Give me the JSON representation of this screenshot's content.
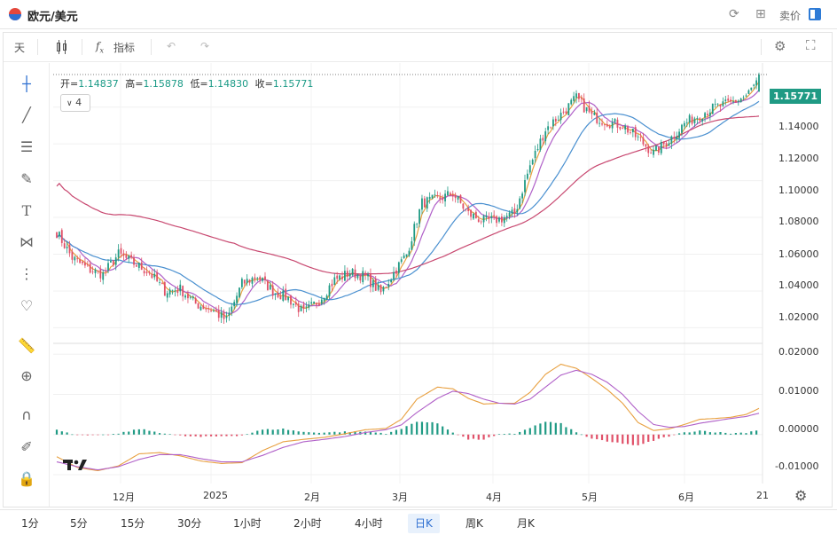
{
  "window": {
    "title": "欧元/美元",
    "sell_label": "卖价"
  },
  "toolbar": {
    "period_label": "天",
    "indicators_label": "指标"
  },
  "ohlc": {
    "open_label": "开=",
    "open": "1.14837",
    "high_label": "高=",
    "high": "1.15878",
    "low_label": "低=",
    "low": "1.14830",
    "close_label": "收=",
    "close": "1.15771"
  },
  "indicator_toggle": "4",
  "last_price": "1.15771",
  "price_axis": [
    "1.14000",
    "1.12000",
    "1.10000",
    "1.08000",
    "1.06000",
    "1.04000",
    "1.02000"
  ],
  "macd_axis": [
    "0.02000",
    "0.01000",
    "0.00000",
    "-0.01000"
  ],
  "time_axis": [
    "12月",
    "2025",
    "2月",
    "3月",
    "4月",
    "5月",
    "6月",
    "21"
  ],
  "timeframes": [
    {
      "label": "1分"
    },
    {
      "label": "5分"
    },
    {
      "label": "15分"
    },
    {
      "label": "30分"
    },
    {
      "label": "1小时"
    },
    {
      "label": "2小时"
    },
    {
      "label": "4小时"
    },
    {
      "label": "日K",
      "active": true
    },
    {
      "label": "周K"
    },
    {
      "label": "月K"
    }
  ],
  "colors": {
    "up": "#1f9a84",
    "down": "#e05068",
    "ma_fast": "#e8a040",
    "ma_mid": "#b060c8",
    "ma_slow": "#4a90d0",
    "ma_long": "#c84870"
  },
  "icons": {
    "window": [
      "refresh-icon",
      "grid-icon",
      "sidebar-toggle-icon"
    ],
    "toolbar": [
      "candlestick-icon",
      "fx-icon",
      "undo-icon",
      "redo-icon",
      "settings-icon",
      "fullscreen-icon"
    ],
    "drawing": [
      "crosshair-icon",
      "trendline-icon",
      "parallel-lines-icon",
      "brush-icon",
      "text-icon",
      "pattern-icon",
      "fib-icon",
      "heart-icon",
      "ruler-icon",
      "zoom-in-icon",
      "magnet-icon",
      "lock-pen-icon",
      "lock-icon"
    ],
    "footer": [
      "gear-icon"
    ]
  },
  "chart_data": {
    "type": "candlestick",
    "price_ylim": [
      1.0115,
      1.164
    ],
    "macd_ylim": [
      -0.0122,
      0.0227
    ],
    "keypoints": [
      [
        0,
        1.072
      ],
      [
        6,
        1.058
      ],
      [
        12,
        1.052
      ],
      [
        18,
        1.049
      ],
      [
        24,
        1.06
      ],
      [
        30,
        1.055
      ],
      [
        36,
        1.05
      ],
      [
        42,
        1.04
      ],
      [
        48,
        1.041
      ],
      [
        54,
        1.033
      ],
      [
        60,
        1.03
      ],
      [
        66,
        1.024
      ],
      [
        72,
        1.044
      ],
      [
        78,
        1.048
      ],
      [
        84,
        1.04
      ],
      [
        90,
        1.036
      ],
      [
        96,
        1.028
      ],
      [
        102,
        1.035
      ],
      [
        108,
        1.046
      ],
      [
        114,
        1.05
      ],
      [
        120,
        1.048
      ],
      [
        126,
        1.039
      ],
      [
        132,
        1.052
      ],
      [
        136,
        1.06
      ],
      [
        142,
        1.088
      ],
      [
        148,
        1.09
      ],
      [
        154,
        1.093
      ],
      [
        160,
        1.082
      ],
      [
        166,
        1.078
      ],
      [
        172,
        1.079
      ],
      [
        178,
        1.082
      ],
      [
        184,
        1.108
      ],
      [
        190,
        1.128
      ],
      [
        196,
        1.136
      ],
      [
        202,
        1.145
      ],
      [
        208,
        1.135
      ],
      [
        214,
        1.132
      ],
      [
        220,
        1.13
      ],
      [
        226,
        1.123
      ],
      [
        232,
        1.115
      ],
      [
        238,
        1.122
      ],
      [
        244,
        1.131
      ],
      [
        250,
        1.136
      ],
      [
        256,
        1.14
      ],
      [
        262,
        1.142
      ],
      [
        268,
        1.146
      ],
      [
        273,
        1.155
      ]
    ],
    "macd_line": [
      [
        0,
        -0.0055
      ],
      [
        8,
        -0.0082
      ],
      [
        16,
        -0.009
      ],
      [
        24,
        -0.0078
      ],
      [
        32,
        -0.0048
      ],
      [
        40,
        -0.0045
      ],
      [
        48,
        -0.0053
      ],
      [
        56,
        -0.0066
      ],
      [
        64,
        -0.0072
      ],
      [
        72,
        -0.007
      ],
      [
        80,
        -0.004
      ],
      [
        88,
        -0.0018
      ],
      [
        96,
        -0.0012
      ],
      [
        104,
        -0.0007
      ],
      [
        112,
        0.0002
      ],
      [
        120,
        0.0012
      ],
      [
        128,
        0.0015
      ],
      [
        134,
        0.0038
      ],
      [
        140,
        0.0088
      ],
      [
        148,
        0.0118
      ],
      [
        154,
        0.0114
      ],
      [
        160,
        0.009
      ],
      [
        166,
        0.0076
      ],
      [
        172,
        0.0078
      ],
      [
        178,
        0.0078
      ],
      [
        184,
        0.0105
      ],
      [
        190,
        0.015
      ],
      [
        196,
        0.0175
      ],
      [
        202,
        0.0165
      ],
      [
        208,
        0.014
      ],
      [
        214,
        0.0112
      ],
      [
        220,
        0.0078
      ],
      [
        226,
        0.003
      ],
      [
        232,
        0.001
      ],
      [
        238,
        0.0014
      ],
      [
        244,
        0.0025
      ],
      [
        250,
        0.0038
      ],
      [
        256,
        0.004
      ],
      [
        262,
        0.0043
      ],
      [
        268,
        0.005
      ],
      [
        273,
        0.0065
      ]
    ],
    "signal_line": [
      [
        0,
        -0.0068
      ],
      [
        8,
        -0.008
      ],
      [
        16,
        -0.0088
      ],
      [
        24,
        -0.008
      ],
      [
        32,
        -0.0062
      ],
      [
        40,
        -0.005
      ],
      [
        48,
        -0.005
      ],
      [
        56,
        -0.006
      ],
      [
        64,
        -0.0068
      ],
      [
        72,
        -0.0068
      ],
      [
        80,
        -0.0052
      ],
      [
        88,
        -0.0032
      ],
      [
        96,
        -0.0018
      ],
      [
        104,
        -0.0012
      ],
      [
        112,
        -0.0005
      ],
      [
        120,
        0.0005
      ],
      [
        128,
        0.0012
      ],
      [
        134,
        0.0024
      ],
      [
        140,
        0.0055
      ],
      [
        148,
        0.009
      ],
      [
        154,
        0.0108
      ],
      [
        160,
        0.0102
      ],
      [
        166,
        0.0088
      ],
      [
        172,
        0.0078
      ],
      [
        178,
        0.0076
      ],
      [
        184,
        0.0088
      ],
      [
        190,
        0.0118
      ],
      [
        196,
        0.0148
      ],
      [
        202,
        0.016
      ],
      [
        208,
        0.015
      ],
      [
        214,
        0.013
      ],
      [
        220,
        0.01
      ],
      [
        226,
        0.0058
      ],
      [
        232,
        0.0025
      ],
      [
        238,
        0.0018
      ],
      [
        244,
        0.002
      ],
      [
        250,
        0.0028
      ],
      [
        256,
        0.0034
      ],
      [
        262,
        0.004
      ],
      [
        268,
        0.0045
      ],
      [
        273,
        0.0053
      ]
    ],
    "moving_averages": [
      {
        "key": "ma_fast",
        "smooth": 4
      },
      {
        "key": "ma_mid",
        "smooth": 9
      },
      {
        "key": "ma_slow",
        "smooth": 25
      },
      {
        "key": "ma_long",
        "smooth": 70
      }
    ]
  }
}
